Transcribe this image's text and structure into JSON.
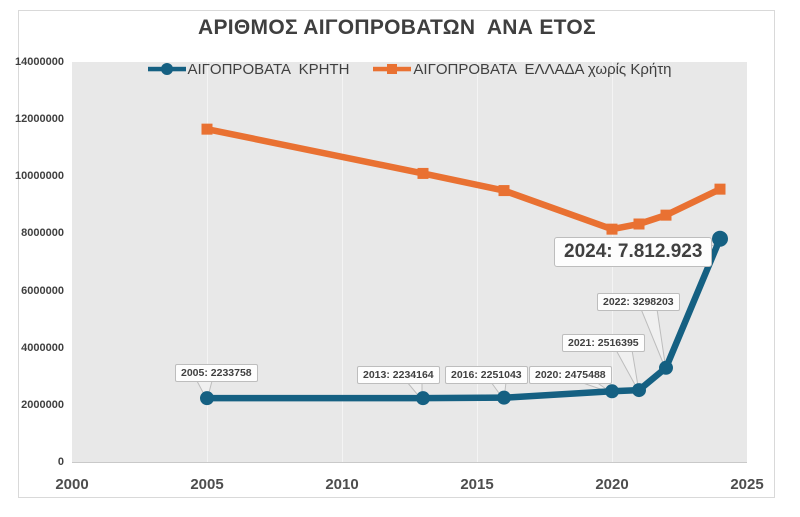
{
  "chart_data": {
    "type": "line",
    "title": "ΑΡΙΘΜΟΣ ΑΙΓΟΠΡΟΒΑΤΩΝ  ΑΝΑ ΕΤΟΣ",
    "x": [
      2005,
      2013,
      2016,
      2020,
      2021,
      2022,
      2024
    ],
    "series": [
      {
        "name": "ΑΙΓΟΠΡΟΒΑΤΑ  ΚΡΗΤΗ",
        "color": "#156082",
        "marker": "circle",
        "values": [
          2233758,
          2234164,
          2251043,
          2475488,
          2516395,
          3298203,
          7812923
        ]
      },
      {
        "name": "ΑΙΓΟΠΡΟΒΑΤΑ  ΕΛΛΑΔΑ χωρίς Κρήτη",
        "color": "#e97132",
        "marker": "square",
        "values": [
          11650000,
          10100000,
          9500000,
          8150000,
          8330000,
          8640000,
          9550000
        ]
      }
    ],
    "xlim": [
      2000,
      2025
    ],
    "ylim": [
      0,
      14000000
    ],
    "x_ticks": [
      2000,
      2005,
      2010,
      2015,
      2020,
      2025
    ],
    "y_ticks": [
      0,
      2000000,
      4000000,
      6000000,
      8000000,
      10000000,
      12000000,
      14000000
    ],
    "grid": "vertical-only",
    "legend_position": "top-center-inside",
    "plot_bg": "#e8e8e8",
    "annotations": [
      {
        "year": 2005,
        "label": "2005: 2233758"
      },
      {
        "year": 2013,
        "label": "2013: 2234164"
      },
      {
        "year": 2016,
        "label": "2016: 2251043"
      },
      {
        "year": 2020,
        "label": "2020: 2475488"
      },
      {
        "year": 2021,
        "label": "2021: 2516395"
      },
      {
        "year": 2022,
        "label": "2022: 3298203"
      },
      {
        "year": 2024,
        "label": "2024: 7.812.923",
        "emphasis": true
      }
    ]
  }
}
